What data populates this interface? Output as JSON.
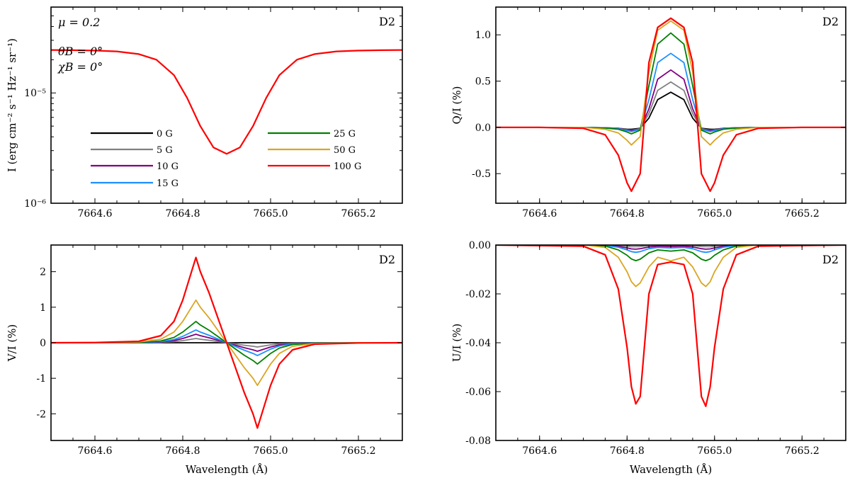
{
  "figure": {
    "legend": [
      {
        "label": "0 G",
        "color": "#000000"
      },
      {
        "label": "5 G",
        "color": "#808080"
      },
      {
        "label": "10 G",
        "color": "#800080"
      },
      {
        "label": "15 G",
        "color": "#1e90ff"
      },
      {
        "label": "25 G",
        "color": "#008000"
      },
      {
        "label": "50 G",
        "color": "#daa520"
      },
      {
        "label": "100 G",
        "color": "#ff0000"
      }
    ],
    "params": {
      "mu": "μ = 0.2",
      "theta": "θB = 0°",
      "chi": "χB = 0°"
    }
  },
  "chart_data": [
    {
      "id": "I",
      "type": "line",
      "title": "D2",
      "xlabel": "",
      "ylabel": "I (erg cm⁻² s⁻¹ Hz⁻¹ sr⁻¹)",
      "xlim": [
        7664.5,
        7665.3
      ],
      "ylim": [
        1e-06,
        6e-05
      ],
      "yscale": "log",
      "xticks": [
        "7664.6",
        "7664.8",
        "7665.0",
        "7665.2"
      ],
      "yticks": [
        {
          "v": 1e-05,
          "label": "10⁻⁵"
        },
        {
          "v": 1e-06,
          "label": "10⁻⁶"
        }
      ],
      "series": [
        {
          "name": "100 G",
          "color": "#ff0000",
          "x": [
            7664.5,
            7664.55,
            7664.6,
            7664.65,
            7664.7,
            7664.74,
            7664.78,
            7664.81,
            7664.84,
            7664.87,
            7664.9,
            7664.93,
            7664.96,
            7664.99,
            7665.02,
            7665.06,
            7665.1,
            7665.15,
            7665.2,
            7665.25,
            7665.3
          ],
          "values": [
            2.45e-05,
            2.44e-05,
            2.42e-05,
            2.38e-05,
            2.25e-05,
            2e-05,
            1.45e-05,
            9e-06,
            5e-06,
            3.2e-06,
            2.8e-06,
            3.2e-06,
            5e-06,
            9e-06,
            1.45e-05,
            2e-05,
            2.25e-05,
            2.38e-05,
            2.42e-05,
            2.44e-05,
            2.45e-05
          ]
        }
      ]
    },
    {
      "id": "Q",
      "type": "line",
      "title": "D2",
      "xlabel": "",
      "ylabel": "Q/I (%)",
      "xlim": [
        7664.5,
        7665.3
      ],
      "ylim": [
        -0.82,
        1.3
      ],
      "xticks": [
        "7664.6",
        "7664.8",
        "7665.0",
        "7665.2"
      ],
      "yticks": [
        "-0.5",
        "0.0",
        "0.5",
        "1.0"
      ],
      "x": [
        7664.5,
        7664.6,
        7664.7,
        7664.75,
        7664.78,
        7664.8,
        7664.81,
        7664.83,
        7664.85,
        7664.87,
        7664.9,
        7664.93,
        7664.95,
        7664.97,
        7664.99,
        7665.0,
        7665.02,
        7665.05,
        7665.1,
        7665.2,
        7665.3
      ],
      "series": [
        {
          "name": "0 G",
          "color": "#000000",
          "values": [
            0,
            0,
            0,
            -0.005,
            -0.01,
            -0.02,
            -0.02,
            -0.01,
            0.1,
            0.3,
            0.38,
            0.3,
            0.1,
            -0.01,
            -0.02,
            -0.02,
            -0.01,
            -0.005,
            0,
            0,
            0
          ]
        },
        {
          "name": "5 G",
          "color": "#808080",
          "values": [
            0,
            0,
            0,
            -0.005,
            -0.01,
            -0.025,
            -0.03,
            -0.015,
            0.15,
            0.4,
            0.49,
            0.4,
            0.15,
            -0.015,
            -0.03,
            -0.025,
            -0.01,
            -0.005,
            0,
            0,
            0
          ]
        },
        {
          "name": "10 G",
          "color": "#800080",
          "values": [
            0,
            0,
            0,
            -0.005,
            -0.012,
            -0.03,
            -0.035,
            -0.02,
            0.2,
            0.52,
            0.62,
            0.52,
            0.2,
            -0.02,
            -0.035,
            -0.03,
            -0.012,
            -0.005,
            0,
            0,
            0
          ]
        },
        {
          "name": "15 G",
          "color": "#1e90ff",
          "values": [
            0,
            0,
            0,
            -0.006,
            -0.015,
            -0.035,
            -0.045,
            -0.02,
            0.3,
            0.7,
            0.8,
            0.7,
            0.3,
            -0.02,
            -0.045,
            -0.035,
            -0.015,
            -0.006,
            0,
            0,
            0
          ]
        },
        {
          "name": "25 G",
          "color": "#008000",
          "values": [
            0,
            0,
            0,
            -0.008,
            -0.02,
            -0.05,
            -0.07,
            -0.03,
            0.45,
            0.9,
            1.02,
            0.9,
            0.45,
            -0.03,
            -0.07,
            -0.05,
            -0.02,
            -0.008,
            0,
            0,
            0
          ]
        },
        {
          "name": "50 G",
          "color": "#daa520",
          "values": [
            0,
            0,
            0,
            -0.02,
            -0.06,
            -0.14,
            -0.19,
            -0.1,
            0.6,
            1.05,
            1.15,
            1.05,
            0.6,
            -0.1,
            -0.19,
            -0.14,
            -0.06,
            -0.02,
            0,
            0,
            0
          ]
        },
        {
          "name": "100 G",
          "color": "#ff0000",
          "values": [
            0,
            0,
            -0.01,
            -0.08,
            -0.3,
            -0.6,
            -0.69,
            -0.5,
            0.7,
            1.08,
            1.18,
            1.08,
            0.7,
            -0.5,
            -0.69,
            -0.6,
            -0.3,
            -0.08,
            -0.01,
            0,
            0
          ]
        }
      ]
    },
    {
      "id": "V",
      "type": "line",
      "title": "D2",
      "xlabel": "Wavelength (Å)",
      "ylabel": "V/I (%)",
      "xlim": [
        7664.5,
        7665.3
      ],
      "ylim": [
        -2.75,
        2.75
      ],
      "xticks": [
        "7664.6",
        "7664.8",
        "7665.0",
        "7665.2"
      ],
      "yticks": [
        "-2",
        "-1",
        "0",
        "1",
        "2"
      ],
      "x": [
        7664.5,
        7664.6,
        7664.7,
        7664.75,
        7664.78,
        7664.8,
        7664.82,
        7664.83,
        7664.84,
        7664.86,
        7664.9,
        7664.94,
        7664.96,
        7664.97,
        7664.98,
        7665.0,
        7665.02,
        7665.05,
        7665.1,
        7665.2,
        7665.3
      ],
      "series": [
        {
          "name": "0 G",
          "color": "#000000",
          "values": [
            0,
            0,
            0,
            0,
            0,
            0,
            0,
            0,
            0,
            0,
            0,
            0,
            0,
            0,
            0,
            0,
            0,
            0,
            0,
            0,
            0
          ]
        },
        {
          "name": "5 G",
          "color": "#808080",
          "values": [
            0,
            0,
            0.002,
            0.01,
            0.03,
            0.06,
            0.1,
            0.12,
            0.1,
            0.07,
            0,
            -0.07,
            -0.1,
            -0.12,
            -0.1,
            -0.06,
            -0.03,
            -0.01,
            -0.002,
            0,
            0
          ]
        },
        {
          "name": "10 G",
          "color": "#800080",
          "values": [
            0,
            0,
            0.004,
            0.02,
            0.06,
            0.12,
            0.2,
            0.24,
            0.2,
            0.14,
            0,
            -0.14,
            -0.2,
            -0.24,
            -0.2,
            -0.12,
            -0.06,
            -0.02,
            -0.004,
            0,
            0
          ]
        },
        {
          "name": "15 G",
          "color": "#1e90ff",
          "values": [
            0,
            0,
            0.006,
            0.03,
            0.09,
            0.18,
            0.3,
            0.36,
            0.3,
            0.21,
            0,
            -0.21,
            -0.3,
            -0.36,
            -0.3,
            -0.18,
            -0.09,
            -0.03,
            -0.006,
            0,
            0
          ]
        },
        {
          "name": "25 G",
          "color": "#008000",
          "values": [
            0,
            0,
            0.01,
            0.05,
            0.15,
            0.3,
            0.5,
            0.6,
            0.5,
            0.35,
            0,
            -0.35,
            -0.5,
            -0.6,
            -0.5,
            -0.3,
            -0.15,
            -0.05,
            -0.01,
            0,
            0
          ]
        },
        {
          "name": "50 G",
          "color": "#daa520",
          "values": [
            0,
            0,
            0.02,
            0.1,
            0.3,
            0.6,
            1.0,
            1.2,
            1.0,
            0.7,
            0,
            -0.7,
            -1.0,
            -1.2,
            -1.0,
            -0.6,
            -0.3,
            -0.1,
            -0.02,
            0,
            0
          ]
        },
        {
          "name": "100 G",
          "color": "#ff0000",
          "values": [
            0,
            0.005,
            0.04,
            0.2,
            0.6,
            1.2,
            2.0,
            2.4,
            2.0,
            1.4,
            0,
            -1.4,
            -2.0,
            -2.4,
            -2.0,
            -1.2,
            -0.6,
            -0.2,
            -0.04,
            -0.005,
            0
          ]
        }
      ]
    },
    {
      "id": "U",
      "type": "line",
      "title": "D2",
      "xlabel": "Wavelength (Å)",
      "ylabel": "U/I (%)",
      "xlim": [
        7664.5,
        7665.3
      ],
      "ylim": [
        -0.08,
        0.0
      ],
      "xticks": [
        "7664.6",
        "7664.8",
        "7665.0",
        "7665.2"
      ],
      "yticks": [
        "-0.08",
        "-0.06",
        "-0.04",
        "-0.02",
        "0.00"
      ],
      "x": [
        7664.5,
        7664.7,
        7664.75,
        7664.78,
        7664.8,
        7664.81,
        7664.82,
        7664.83,
        7664.85,
        7664.87,
        7664.9,
        7664.93,
        7664.95,
        7664.97,
        7664.98,
        7664.99,
        7665.0,
        7665.02,
        7665.05,
        7665.1,
        7665.3
      ],
      "series": [
        {
          "name": "0 G",
          "color": "#000000",
          "values": [
            0,
            0,
            0,
            0,
            0,
            0,
            0,
            0,
            0,
            0,
            0,
            0,
            0,
            0,
            0,
            0,
            0,
            0,
            0,
            0,
            0
          ]
        },
        {
          "name": "5 G",
          "color": "#808080",
          "values": [
            0,
            0,
            0,
            -0.0002,
            -0.0005,
            -0.0007,
            -0.0007,
            -0.0006,
            -0.0003,
            -0.0002,
            -0.0003,
            -0.0002,
            -0.0003,
            -0.0006,
            -0.0007,
            -0.0007,
            -0.0005,
            -0.0002,
            0,
            0,
            0
          ]
        },
        {
          "name": "10 G",
          "color": "#800080",
          "values": [
            0,
            0,
            -0.0001,
            -0.0005,
            -0.0012,
            -0.0016,
            -0.0017,
            -0.0015,
            -0.0008,
            -0.0005,
            -0.0006,
            -0.0005,
            -0.0008,
            -0.0015,
            -0.0017,
            -0.0016,
            -0.0012,
            -0.0005,
            -0.0001,
            0,
            0
          ]
        },
        {
          "name": "15 G",
          "color": "#1e90ff",
          "values": [
            0,
            0,
            -0.0002,
            -0.0009,
            -0.002,
            -0.0027,
            -0.003,
            -0.0027,
            -0.0015,
            -0.001,
            -0.0012,
            -0.001,
            -0.0015,
            -0.0027,
            -0.003,
            -0.0027,
            -0.002,
            -0.0009,
            -0.0002,
            0,
            0
          ]
        },
        {
          "name": "25 G",
          "color": "#008000",
          "values": [
            0,
            0,
            -0.0004,
            -0.002,
            -0.0042,
            -0.0057,
            -0.0064,
            -0.0058,
            -0.0032,
            -0.002,
            -0.0025,
            -0.002,
            -0.0032,
            -0.0058,
            -0.0064,
            -0.0057,
            -0.0042,
            -0.002,
            -0.0004,
            0,
            0
          ]
        },
        {
          "name": "50 G",
          "color": "#daa520",
          "values": [
            0,
            0,
            -0.001,
            -0.005,
            -0.011,
            -0.015,
            -0.017,
            -0.0155,
            -0.009,
            -0.005,
            -0.0065,
            -0.005,
            -0.009,
            -0.0155,
            -0.017,
            -0.015,
            -0.011,
            -0.005,
            -0.001,
            0,
            0
          ]
        },
        {
          "name": "100 G",
          "color": "#ff0000",
          "values": [
            0,
            -0.0005,
            -0.004,
            -0.018,
            -0.042,
            -0.058,
            -0.065,
            -0.062,
            -0.02,
            -0.008,
            -0.007,
            -0.008,
            -0.02,
            -0.062,
            -0.066,
            -0.058,
            -0.042,
            -0.018,
            -0.004,
            -0.0005,
            0
          ]
        }
      ]
    }
  ]
}
